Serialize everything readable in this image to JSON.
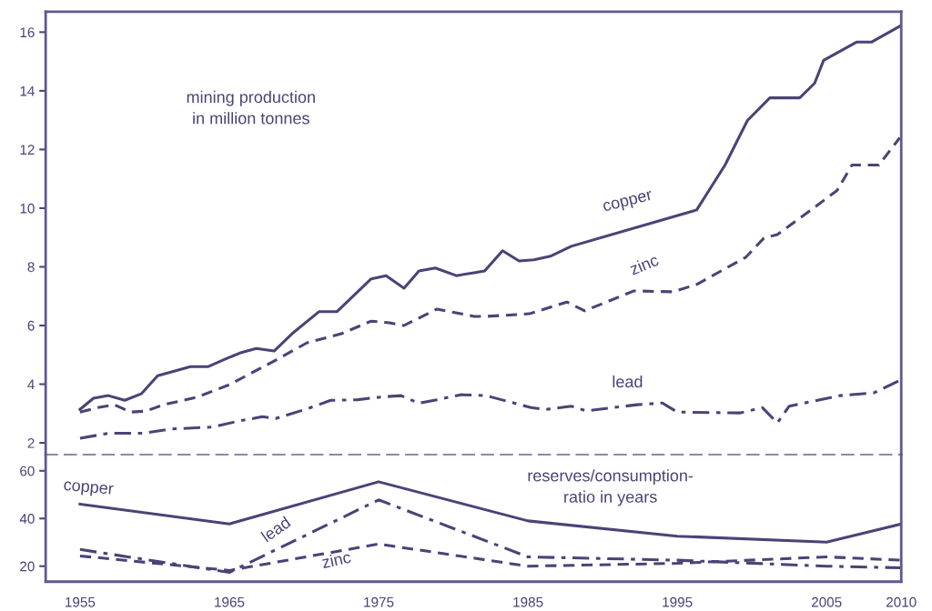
{
  "chart_data": [
    {
      "type": "line",
      "title": "mining production\nin million tonnes",
      "xlim": [
        1952.7,
        2010
      ],
      "ylim": [
        1.6,
        16.7
      ],
      "yticks": [
        2,
        4,
        6,
        8,
        10,
        12,
        14,
        16
      ],
      "tick_labels": "y",
      "grid": false,
      "legend": false,
      "marker": "none",
      "series": [
        {
          "name": "copper",
          "color": "#4b4377",
          "line_style": "solid",
          "x": [
            1955,
            1955.9,
            1956.9,
            1958,
            1959.1,
            1960.2,
            1961.3,
            1962.4,
            1963.6,
            1964.7,
            1965.7,
            1966.8,
            1968,
            1969.2,
            1971,
            1972.2,
            1974.5,
            1975.5,
            1976.7,
            1977.7,
            1978.8,
            1980.2,
            1981.4,
            1982.1,
            1983.3,
            1984.4,
            1985.4,
            1986.5,
            1987.9,
            1996.3,
            1998.2,
            1999.7,
            2001.2,
            2003.2,
            2004.2,
            2004.8,
            2007,
            2008,
            2009.9
          ],
          "values": [
            3.14,
            3.52,
            3.61,
            3.45,
            3.67,
            4.29,
            4.44,
            4.6,
            4.6,
            4.85,
            5.06,
            5.22,
            5.13,
            5.72,
            6.47,
            6.47,
            7.59,
            7.7,
            7.27,
            7.86,
            7.96,
            7.7,
            7.8,
            7.86,
            8.55,
            8.2,
            8.24,
            8.36,
            8.7,
            9.94,
            11.47,
            12.99,
            13.76,
            13.76,
            14.26,
            15.04,
            15.66,
            15.66,
            16.2
          ]
        },
        {
          "name": "zinc",
          "color": "#4b4377",
          "line_style": "dashed",
          "x": [
            1955,
            1956.2,
            1957.3,
            1958.4,
            1959.4,
            1960.6,
            1962.8,
            1965,
            1968,
            1970.2,
            1972.5,
            1974.5,
            1975.7,
            1976.7,
            1978.9,
            1981.4,
            1982.2,
            1985.1,
            1987.6,
            1988.8,
            1992.1,
            1994.7,
            1996.3,
            1999.6,
            2000.8,
            2001.7,
            2003.8,
            2005.7,
            2006.7,
            2008.5,
            2009.9
          ],
          "values": [
            3.05,
            3.2,
            3.3,
            3.05,
            3.08,
            3.3,
            3.55,
            3.98,
            4.79,
            5.41,
            5.72,
            6.15,
            6.09,
            6.0,
            6.56,
            6.31,
            6.31,
            6.4,
            6.8,
            6.5,
            7.18,
            7.15,
            7.4,
            8.33,
            8.98,
            9.1,
            9.88,
            10.6,
            11.47,
            11.47,
            12.4
          ]
        },
        {
          "name": "lead",
          "color": "#4b4377",
          "line_style": "dashdot",
          "x": [
            1955,
            1957,
            1959.2,
            1961.1,
            1963.9,
            1965.5,
            1967.2,
            1968.1,
            1970.1,
            1971.8,
            1973.6,
            1975.1,
            1976.5,
            1977.7,
            1978.9,
            1980.5,
            1982.2,
            1985.2,
            1986.2,
            1987.9,
            1988.9,
            1992.3,
            1994,
            1995,
            1999.2,
            2000.7,
            2001.7,
            2002.5,
            2005.9,
            2008.2,
            2009.9
          ],
          "values": [
            2.16,
            2.33,
            2.33,
            2.47,
            2.54,
            2.73,
            2.89,
            2.83,
            3.14,
            3.45,
            3.47,
            3.56,
            3.61,
            3.35,
            3.47,
            3.64,
            3.61,
            3.2,
            3.14,
            3.25,
            3.09,
            3.3,
            3.36,
            3.05,
            3.02,
            3.2,
            2.68,
            3.25,
            3.61,
            3.71,
            4.13
          ]
        }
      ]
    },
    {
      "type": "line",
      "title": "reserves/consumption-\nratio in years",
      "xlim": [
        1952.7,
        2010
      ],
      "xticks": [
        1955,
        1965,
        1975,
        1985,
        1995,
        2005,
        2010
      ],
      "ylim": [
        13.5,
        66.8
      ],
      "yticks": [
        20,
        40,
        60
      ],
      "grid": false,
      "legend": false,
      "marker": "none",
      "x": [
        1955,
        1965,
        1975,
        1985,
        1995,
        2005,
        2010
      ],
      "series": [
        {
          "name": "copper",
          "color": "#4b4377",
          "line_style": "solid",
          "values": [
            46,
            37.7,
            55.4,
            39,
            32.6,
            30.1,
            37.7
          ]
        },
        {
          "name": "lead",
          "color": "#4b4377",
          "line_style": "dashdot",
          "values": [
            27,
            17.4,
            47.8,
            23.9,
            22.5,
            20,
            19.3
          ]
        },
        {
          "name": "zinc",
          "color": "#4b4377",
          "line_style": "dashed",
          "values": [
            24.3,
            18.2,
            29.3,
            20,
            21.2,
            23.9,
            22.5
          ]
        }
      ]
    }
  ]
}
